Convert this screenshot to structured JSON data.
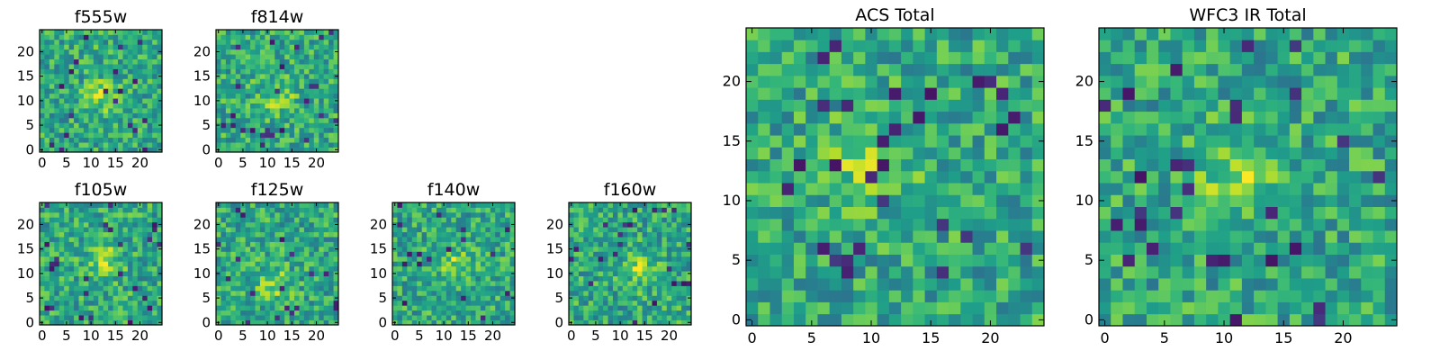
{
  "chart_data": [
    {
      "type": "heatmap",
      "title": "f555w",
      "colormap": "viridis",
      "grid_size": [
        25,
        25
      ],
      "hotspot": [
        12,
        11
      ],
      "xticks": [
        "0",
        "5",
        "10",
        "15",
        "20"
      ],
      "yticks": [
        "0",
        "5",
        "10",
        "15",
        "20"
      ]
    },
    {
      "type": "heatmap",
      "title": "f814w",
      "colormap": "viridis",
      "grid_size": [
        25,
        25
      ],
      "hotspot": [
        12,
        11
      ],
      "xticks": [
        "0",
        "5",
        "10",
        "15",
        "20"
      ],
      "yticks": [
        "0",
        "5",
        "10",
        "15",
        "20"
      ]
    },
    {
      "type": "heatmap",
      "title": "f105w",
      "colormap": "viridis",
      "grid_size": [
        25,
        25
      ],
      "hotspot": [
        13,
        13
      ],
      "xticks": [
        "0",
        "5",
        "10",
        "15",
        "20"
      ],
      "yticks": [
        "0",
        "5",
        "10",
        "15",
        "20"
      ]
    },
    {
      "type": "heatmap",
      "title": "f125w",
      "colormap": "viridis",
      "grid_size": [
        25,
        25
      ],
      "hotspot": [
        11,
        8
      ],
      "xticks": [
        "0",
        "5",
        "10",
        "15",
        "20"
      ],
      "yticks": [
        "0",
        "5",
        "10",
        "15",
        "20"
      ]
    },
    {
      "type": "heatmap",
      "title": "f140w",
      "colormap": "viridis",
      "grid_size": [
        25,
        25
      ],
      "hotspot": [
        12,
        12
      ],
      "xticks": [
        "0",
        "5",
        "10",
        "15",
        "20"
      ],
      "yticks": [
        "0",
        "5",
        "10",
        "15",
        "20"
      ]
    },
    {
      "type": "heatmap",
      "title": "f160w",
      "colormap": "viridis",
      "grid_size": [
        25,
        25
      ],
      "hotspot": [
        14,
        11
      ],
      "xticks": [
        "0",
        "5",
        "10",
        "15",
        "20"
      ],
      "yticks": [
        "0",
        "5",
        "10",
        "15",
        "20"
      ]
    },
    {
      "type": "heatmap",
      "title": "ACS Total",
      "colormap": "viridis",
      "grid_size": [
        25,
        25
      ],
      "hotspot": [
        10,
        13
      ],
      "xticks": [
        "0",
        "5",
        "10",
        "15",
        "20"
      ],
      "yticks": [
        "0",
        "5",
        "10",
        "15",
        "20"
      ]
    },
    {
      "type": "heatmap",
      "title": "WFC3 IR Total",
      "colormap": "viridis",
      "grid_size": [
        25,
        25
      ],
      "hotspot": [
        11,
        12
      ],
      "xticks": [
        "0",
        "5",
        "10",
        "15",
        "20"
      ],
      "yticks": [
        "0",
        "5",
        "10",
        "15",
        "20"
      ]
    }
  ]
}
